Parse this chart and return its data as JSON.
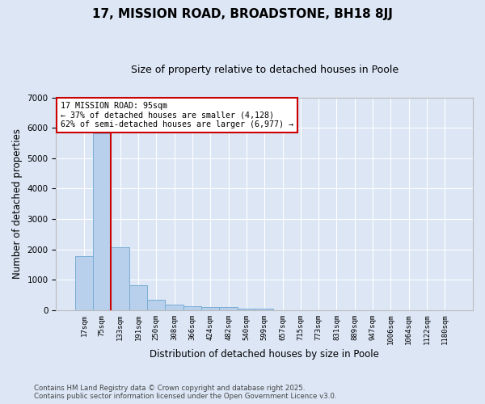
{
  "title": "17, MISSION ROAD, BROADSTONE, BH18 8JJ",
  "subtitle": "Size of property relative to detached houses in Poole",
  "xlabel": "Distribution of detached houses by size in Poole",
  "ylabel": "Number of detached properties",
  "bar_color": "#b8d0eb",
  "bar_edge_color": "#7aadd4",
  "background_color": "#dce6f5",
  "grid_color": "#ffffff",
  "categories": [
    "17sqm",
    "75sqm",
    "133sqm",
    "191sqm",
    "250sqm",
    "308sqm",
    "366sqm",
    "424sqm",
    "482sqm",
    "540sqm",
    "599sqm",
    "657sqm",
    "715sqm",
    "773sqm",
    "831sqm",
    "889sqm",
    "947sqm",
    "1006sqm",
    "1064sqm",
    "1122sqm",
    "1180sqm"
  ],
  "values": [
    1780,
    5820,
    2080,
    820,
    340,
    190,
    120,
    100,
    95,
    65,
    55,
    0,
    0,
    0,
    0,
    0,
    0,
    0,
    0,
    0,
    0
  ],
  "property_label": "17 MISSION ROAD: 95sqm",
  "annotation_line1": "← 37% of detached houses are smaller (4,128)",
  "annotation_line2": "62% of semi-detached houses are larger (6,977) →",
  "annotation_box_color": "#ffffff",
  "annotation_box_edge": "#cc0000",
  "vline_color": "#cc0000",
  "vline_x": 1.5,
  "ylim": [
    0,
    7000
  ],
  "yticks": [
    0,
    1000,
    2000,
    3000,
    4000,
    5000,
    6000,
    7000
  ],
  "footer_line1": "Contains HM Land Registry data © Crown copyright and database right 2025.",
  "footer_line2": "Contains public sector information licensed under the Open Government Licence v3.0."
}
